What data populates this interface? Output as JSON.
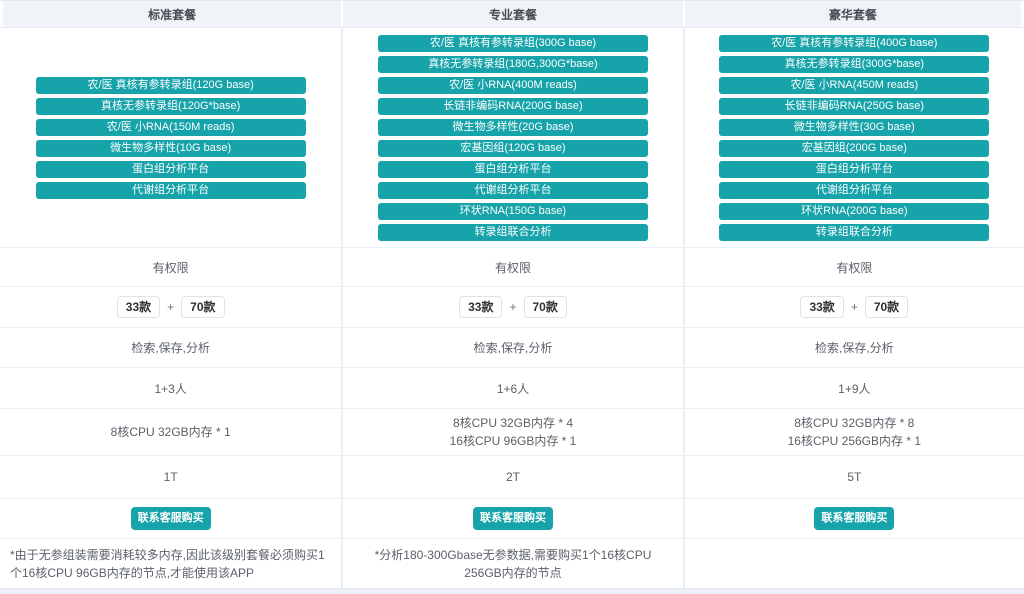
{
  "theme": {
    "accent": "#16a3a9",
    "header_bg": "#f0f3f7",
    "border": "#eaeff5"
  },
  "badge_plus": "+",
  "plans": [
    {
      "title": "标准套餐",
      "apps": [
        "农/医 真核有参转录组(120G base)",
        "真核无参转录组(120G*base)",
        "农/医 小RNA(150M reads)",
        "微生物多样性(10G base)",
        "蛋白组分析平台",
        "代谢组分析平台"
      ],
      "permission": "有权限",
      "badge1": "33款",
      "badge2": "70款",
      "actions": "检索,保存,分析",
      "users": "1+3人",
      "compute": [
        "8核CPU 32GB内存 * 1",
        ""
      ],
      "storage": "1T",
      "buy_label": "联系客服购买",
      "note": "*由于无参组装需要消耗较多内存,因此该级别套餐必须购买1个16核CPU 96GB内存的节点,才能使用该APP"
    },
    {
      "title": "专业套餐",
      "apps": [
        "农/医 真核有参转录组(300G base)",
        "真核无参转录组(180G,300G*base)",
        "农/医 小RNA(400M reads)",
        "长链非编码RNA(200G base)",
        "微生物多样性(20G base)",
        "宏基因组(120G base)",
        "蛋白组分析平台",
        "代谢组分析平台",
        "环状RNA(150G base)",
        "转录组联合分析"
      ],
      "permission": "有权限",
      "badge1": "33款",
      "badge2": "70款",
      "actions": "检索,保存,分析",
      "users": "1+6人",
      "compute": [
        "8核CPU 32GB内存 * 4",
        "16核CPU 96GB内存 * 1"
      ],
      "storage": "2T",
      "buy_label": "联系客服购买",
      "note": "*分析180-300Gbase无参数据,需要购买1个16核CPU 256GB内存的节点"
    },
    {
      "title": "豪华套餐",
      "apps": [
        "农/医 真核有参转录组(400G base)",
        "真核无参转录组(300G*base)",
        "农/医 小RNA(450M reads)",
        "长链非编码RNA(250G base)",
        "微生物多样性(30G base)",
        "宏基因组(200G base)",
        "蛋白组分析平台",
        "代谢组分析平台",
        "环状RNA(200G base)",
        "转录组联合分析"
      ],
      "permission": "有权限",
      "badge1": "33款",
      "badge2": "70款",
      "actions": "检索,保存,分析",
      "users": "1+9人",
      "compute": [
        "8核CPU 32GB内存 * 8",
        "16核CPU 256GB内存 * 1"
      ],
      "storage": "5T",
      "buy_label": "联系客服购买",
      "note": ""
    }
  ]
}
